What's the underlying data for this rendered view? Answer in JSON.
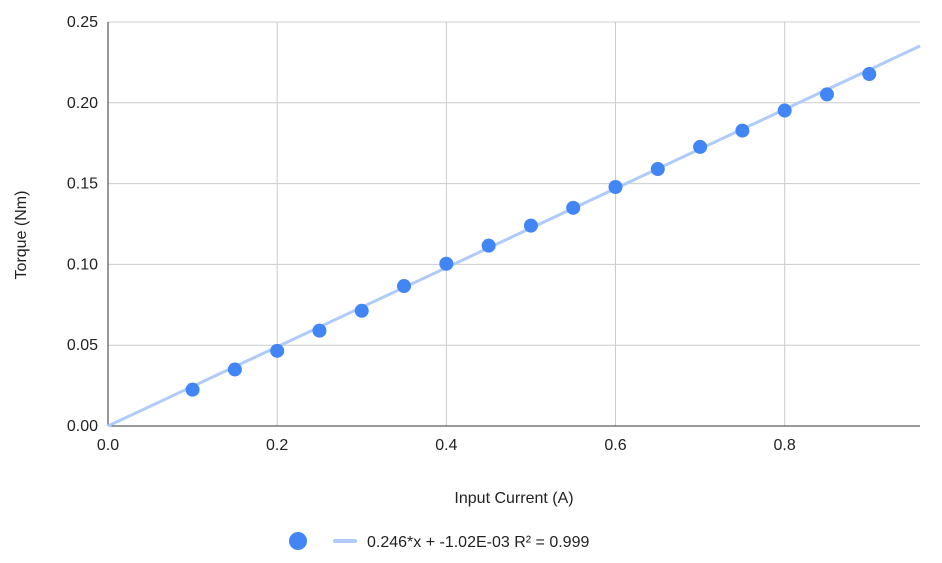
{
  "chart_data": {
    "type": "scatter",
    "title": "",
    "xlabel": "Input Current (A)",
    "ylabel": "Torque (Nm)",
    "xlim": [
      0,
      0.96
    ],
    "ylim": [
      0,
      0.25
    ],
    "x_ticks": [
      "0.0",
      "0.2",
      "0.4",
      "0.6",
      "0.8"
    ],
    "x_tick_values": [
      0,
      0.2,
      0.4,
      0.6,
      0.8
    ],
    "y_ticks": [
      "0.00",
      "0.05",
      "0.10",
      "0.15",
      "0.20",
      "0.25"
    ],
    "y_tick_values": [
      0,
      0.05,
      0.1,
      0.15,
      0.2,
      0.25
    ],
    "grid": true,
    "series": [
      {
        "x": [
          0.1,
          0.15,
          0.2,
          0.25,
          0.3,
          0.35,
          0.4,
          0.45,
          0.5,
          0.55,
          0.6,
          0.65,
          0.7,
          0.75,
          0.8,
          0.85,
          0.9
        ],
        "y": [
          0.0225,
          0.035,
          0.0465,
          0.059,
          0.0713,
          0.0866,
          0.1004,
          0.1116,
          0.124,
          0.135,
          0.1479,
          0.159,
          0.1727,
          0.1828,
          0.1952,
          0.2052,
          0.2178
        ],
        "color": "#4285f4"
      }
    ],
    "trendline": {
      "slope": 0.246,
      "intercept": -0.00102,
      "color": "#aecbfa",
      "label": "0.246*x + -1.02E-03 R² = 0.999"
    },
    "legend_position": "bottom"
  }
}
